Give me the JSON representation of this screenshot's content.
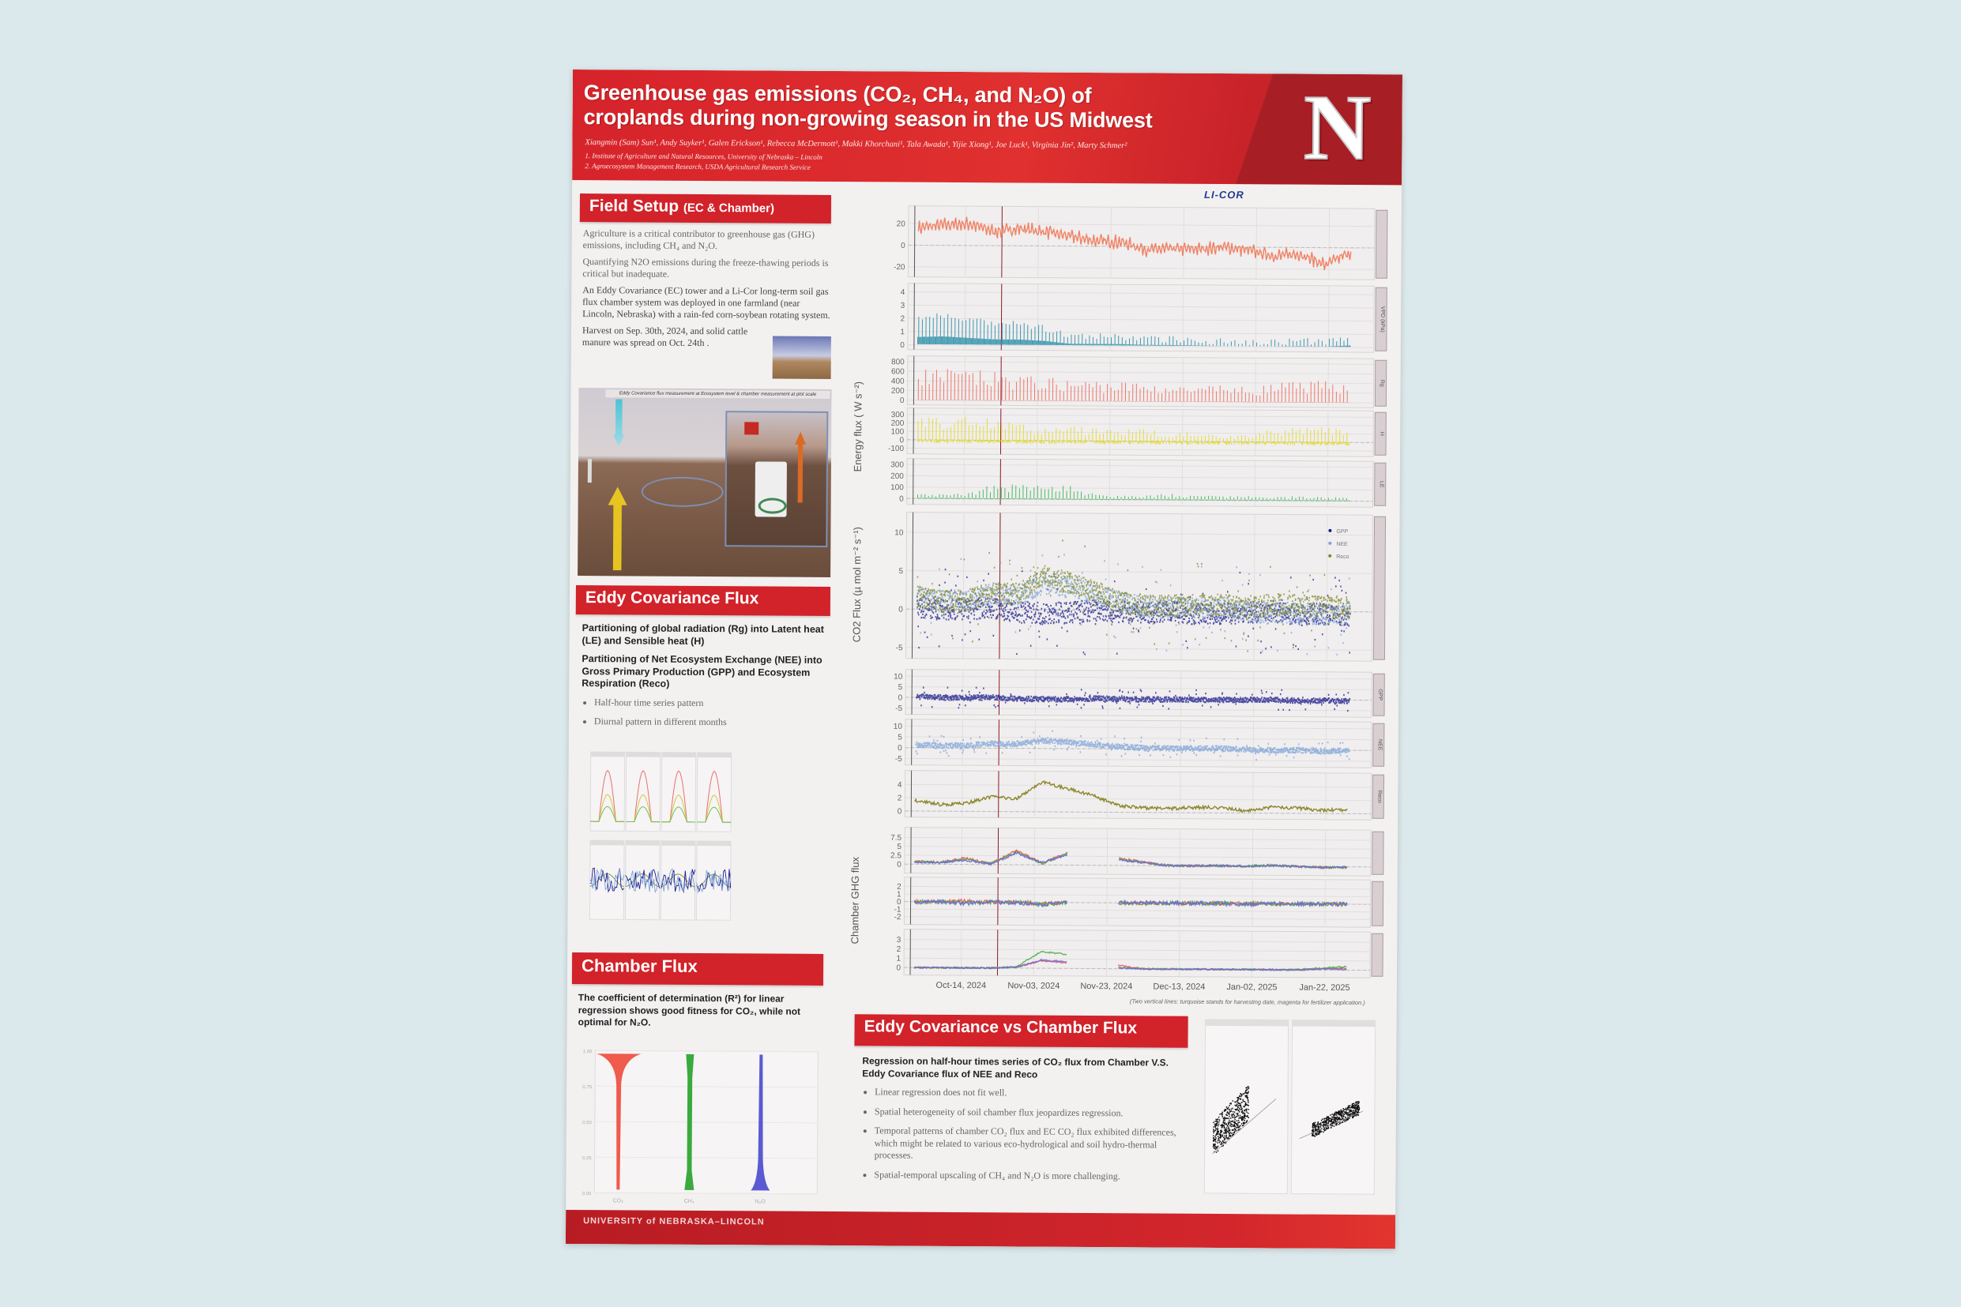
{
  "header": {
    "title_line1": "Greenhouse gas emissions (CO₂, CH₄, and N₂O) of",
    "title_line2": "croplands during non-growing season in the US Midwest",
    "authors": "Xiangmin (Sam) Sun¹, Andy Suyker¹, Galen Erickson¹, Rebecca McDermott¹, Makki Khorchani¹, Tala Awada¹, Yijie Xiong¹, Joe Luck¹, Virginia Jin², Marty Schmer²",
    "affiliation_1": "1.   Institute of Agriculture and Natural Resources, University of Nebraska – Lincoln",
    "affiliation_2": "2.   Agroecosystem Management Research, USDA Agricultural Research Service",
    "logo_letter": "N",
    "sponsor_logo": "LI-COR"
  },
  "field_setup": {
    "heading": "Field Setup",
    "heading_sub": "(EC & Chamber)",
    "paragraphs": [
      "Agriculture is a critical contributor to greenhouse gas (GHG) emissions, including CH₄ and N₂O.",
      "Quantifying N2O emissions during the freeze-thawing periods is critical but inadequate.",
      "An Eddy Covariance (EC) tower and a Li-Cor long-term soil gas flux chamber system was deployed in one farmland (near Lincoln, Nebraska) with a rain-fed corn-soybean rotating system.",
      "Harvest on Sep. 30th, 2024, and solid cattle manure was spread on Oct. 24th ."
    ],
    "photo_caption": "Eddy Covariance flux measurement at Ecosystem level & chamber measurement at plot scale"
  },
  "ec_flux": {
    "heading": "Eddy Covariance Flux",
    "point1": "Partitioning of global radiation (Rg) into Latent heat (LE) and Sensible heat (H)",
    "point2": "Partitioning of Net Ecosystem Exchange (NEE) into Gross Primary Production (GPP) and Ecosystem Respiration (Reco)",
    "bullets": [
      "Half-hour time series pattern",
      "Diurnal pattern in different months"
    ]
  },
  "chamber_flux": {
    "heading": "Chamber Flux",
    "text": "The coefficient of determination (R²) for linear regression shows good fitness for CO₂, while not optimal for N₂O."
  },
  "ec_vs_chamber": {
    "heading": "Eddy Covariance vs Chamber Flux",
    "lead": "Regression on half-hour times series of CO₂ flux from Chamber V.S. Eddy Covariance flux of NEE and Reco",
    "bullets": [
      "Linear regression does not fit well.",
      "Spatial heterogeneity of soil chamber flux jeopardizes regression.",
      "Temporal patterns of chamber CO₂ flux and EC CO₂ flux exhibited differences, which might be related to various eco-hydrological and soil hydro-thermal processes.",
      "Spatial-temporal upscaling of CH₄ and N₂O is more challenging."
    ]
  },
  "footer": {
    "university": "UNIVERSITY of NEBRASKA–LINCOLN"
  },
  "colors": {
    "brand_red": "#d2222a",
    "dark_red": "#a71f25",
    "licor_blue": "#1d3c8f"
  },
  "chart_data": [
    {
      "type": "line",
      "title": "",
      "x_axis": {
        "type": "date",
        "domain": [
          "2024-09-30",
          "2025-01-31"
        ],
        "tick_dates": [
          "2024-10-14",
          "2024-11-03",
          "2024-11-23",
          "2024-12-13",
          "2025-01-02",
          "2025-01-22"
        ],
        "tick_labels": [
          "Oct-14, 2024",
          "Nov-03, 2024",
          "Nov-23, 2024",
          "Dec-13, 2024",
          "Jan-02, 2025",
          "Jan-22, 2025"
        ]
      },
      "x": [
        "2024-10-01",
        "2024-10-08",
        "2024-10-15",
        "2024-10-22",
        "2024-10-29",
        "2024-11-05",
        "2024-11-12",
        "2024-11-19",
        "2024-11-26",
        "2024-12-03",
        "2024-12-10",
        "2024-12-17",
        "2024-12-24",
        "2024-12-31",
        "2025-01-07",
        "2025-01-14",
        "2025-01-21",
        "2025-01-28"
      ],
      "vertical_lines": [
        {
          "date": "2024-09-30",
          "color": "#555555"
        },
        {
          "date": "2024-10-24",
          "color": "#8b1a2a"
        }
      ],
      "note": "(Two vertical lines: turquoise stands for harvesting date, magenta for fertilizer application.)",
      "group_labels": {
        "energy": "Energy flux ( W s⁻²)",
        "co2": "CO2 Flux (µ mol m⁻² s⁻¹)",
        "chamber": "Chamber GHG flux"
      },
      "grid": true,
      "panels": [
        {
          "id": "ta",
          "strip": "",
          "ylim": [
            -25,
            32
          ],
          "yticks": [
            -20,
            0,
            20
          ],
          "series": [
            {
              "color": "#f07655",
              "values": [
                16,
                19,
                20,
                13,
                16,
                13,
                9,
                5,
                4,
                -3,
                -2,
                -2,
                0,
                -3,
                -8,
                -6,
                -16,
                -4
              ]
            }
          ]
        },
        {
          "id": "vpd",
          "strip": "VPD (kPa)",
          "ylim": [
            0,
            4.3
          ],
          "yticks": [
            0,
            1,
            2,
            3,
            4
          ],
          "series": [
            {
              "color": "#2b8fa8",
              "values": [
                1.2,
                1.3,
                1.1,
                0.9,
                0.9,
                0.7,
                0.3,
                0.3,
                0.3,
                0.2,
                0.2,
                0.15,
                0.1,
                0.1,
                0.1,
                0.15,
                0.1,
                0.3
              ]
            }
          ]
        },
        {
          "id": "rg",
          "strip": "Rg",
          "ylim": [
            0,
            820
          ],
          "yticks": [
            0,
            200,
            400,
            600,
            800
          ],
          "series": [
            {
              "color": "#ee6a5e",
              "values": [
                720,
                680,
                650,
                600,
                550,
                500,
                450,
                450,
                420,
                400,
                350,
                300,
                380,
                300,
                400,
                450,
                450,
                450
              ]
            }
          ]
        },
        {
          "id": "h",
          "strip": "H",
          "ylim": [
            -110,
            320
          ],
          "yticks": [
            -100,
            0,
            100,
            200,
            300
          ],
          "series": [
            {
              "color": "#e3d92a",
              "values": [
                300,
                280,
                300,
                250,
                200,
                150,
                180,
                160,
                170,
                150,
                100,
                120,
                60,
                100,
                180,
                180,
                180,
                160
              ]
            }
          ]
        },
        {
          "id": "le",
          "strip": "LE",
          "ylim": [
            -10,
            310
          ],
          "yticks": [
            0,
            100,
            200,
            300
          ],
          "series": [
            {
              "color": "#39b554",
              "values": [
                40,
                40,
                60,
                150,
                150,
                200,
                120,
                50,
                40,
                40,
                60,
                40,
                40,
                40,
                40,
                40,
                40,
                40
              ]
            }
          ]
        },
        {
          "id": "co2",
          "strip": "",
          "ylim": [
            -5.8,
            12
          ],
          "yticks": [
            -5,
            0,
            5,
            10
          ],
          "legend": "top-right",
          "series": [
            {
              "name": "GPP",
              "color": "#1a1a8c",
              "values": [
                0.3,
                0,
                0,
                0.2,
                -0.3,
                -0.5,
                -0.4,
                0,
                -0.2,
                -0.3,
                -0.2,
                -0.4,
                -0.3,
                -0.2,
                0,
                -0.5,
                -0.3,
                -0.5
              ]
            },
            {
              "name": "NEE",
              "color": "#7ea3d8",
              "values": [
                1.5,
                1.0,
                1.2,
                2,
                2,
                3.5,
                3,
                2,
                1,
                0.5,
                0.3,
                0.5,
                0.5,
                0,
                -0.3,
                0,
                -0.5,
                0
              ]
            },
            {
              "name": "Reco",
              "color": "#7f8a2a",
              "values": [
                1.6,
                1.0,
                1.2,
                2.2,
                2.0,
                4.5,
                3.5,
                2.5,
                1.0,
                0.7,
                0.6,
                0.8,
                0.8,
                0.3,
                0.9,
                0.8,
                0.5,
                0.6
              ]
            }
          ]
        },
        {
          "id": "gpp",
          "strip": "GPP",
          "ylim": [
            -5.8,
            11
          ],
          "yticks": [
            -5,
            0,
            5,
            10
          ],
          "series": [
            {
              "color": "#1a1a8c",
              "values": [
                0.3,
                0,
                0,
                0.2,
                -0.3,
                -0.5,
                -0.4,
                0,
                -0.2,
                -0.3,
                -0.2,
                -0.4,
                -0.3,
                -0.2,
                0,
                -0.5,
                -0.3,
                -0.5
              ]
            }
          ]
        },
        {
          "id": "nee",
          "strip": "NEE",
          "ylim": [
            -5.8,
            11
          ],
          "yticks": [
            -5,
            0,
            5,
            10
          ],
          "series": [
            {
              "color": "#7ea3d8",
              "values": [
                1.5,
                1.0,
                1.2,
                2,
                2,
                3.5,
                3,
                2,
                1,
                0.5,
                0.3,
                0.5,
                0.5,
                0,
                -0.3,
                0,
                -0.5,
                0
              ]
            }
          ]
        },
        {
          "id": "reco",
          "strip": "Reco",
          "ylim": [
            -0.2,
            5.4
          ],
          "yticks": [
            0,
            2,
            4
          ],
          "series": [
            {
              "color": "#7f7a16",
              "values": [
                1.6,
                1.0,
                1.2,
                2.2,
                2.0,
                4.5,
                3.5,
                2.5,
                1.0,
                0.7,
                0.6,
                0.8,
                0.8,
                0.3,
                0.9,
                0.8,
                0.5,
                0.6
              ]
            }
          ]
        },
        {
          "id": "ch_co2",
          "strip": "",
          "ylim": [
            -1.2,
            9
          ],
          "yticks": [
            0.0,
            2.5,
            5.0,
            7.5
          ],
          "series": [
            {
              "color": "#f0584a",
              "values": [
                0.8,
                0.6,
                1.8,
                0.3,
                4,
                0.5,
                3.5,
                null,
                2,
                1,
                0,
                0,
                0.1,
                0,
                0.3,
                0,
                -0.2,
                -0.2
              ]
            },
            {
              "color": "#4fae4f",
              "values": [
                0.7,
                0.5,
                1.4,
                0.3,
                3.6,
                0.4,
                3.2,
                null,
                1.8,
                0.9,
                0,
                0,
                0.1,
                0,
                0.3,
                0,
                -0.2,
                -0.2
              ]
            },
            {
              "color": "#6a6ad8",
              "values": [
                0.6,
                0.5,
                1.2,
                0.2,
                3.3,
                0.6,
                3.0,
                null,
                1.6,
                0.8,
                0,
                0,
                0.1,
                0,
                0.2,
                0,
                -0.2,
                -0.2
              ]
            }
          ]
        },
        {
          "id": "ch_ch4",
          "strip": "",
          "ylim": [
            -2.4,
            2.6
          ],
          "yticks": [
            -2,
            -1,
            0,
            1,
            2
          ],
          "series": [
            {
              "color": "#f0584a",
              "values": [
                0,
                0,
                0.1,
                0,
                0,
                -0.2,
                0,
                null,
                0,
                0,
                0,
                0,
                0,
                0,
                0,
                0,
                0,
                0
              ]
            },
            {
              "color": "#4fae4f",
              "values": [
                0,
                0,
                -0.1,
                0,
                0,
                -0.3,
                0,
                null,
                0,
                0,
                0,
                0,
                0,
                0,
                0,
                0,
                0,
                0
              ]
            },
            {
              "color": "#6a6ad8",
              "values": [
                -0.1,
                0,
                -0.2,
                0,
                -0.1,
                -0.3,
                0,
                null,
                0,
                0,
                0,
                0,
                0,
                -0.1,
                0,
                0,
                0,
                0
              ]
            }
          ]
        },
        {
          "id": "ch_n2o",
          "strip": "",
          "ylim": [
            -0.3,
            3.6
          ],
          "yticks": [
            0,
            1,
            2,
            3
          ],
          "series": [
            {
              "color": "#f0584a",
              "values": [
                0,
                0,
                0,
                0,
                0.1,
                0.8,
                0.6,
                null,
                0.4,
                0,
                0,
                0,
                0,
                0,
                0,
                0,
                0.1,
                0.2
              ]
            },
            {
              "color": "#4fae4f",
              "values": [
                0,
                0,
                0,
                0,
                0.1,
                1.8,
                1.5,
                null,
                0.1,
                0,
                0,
                0,
                0,
                0,
                0,
                0,
                0.2,
                0.4
              ]
            },
            {
              "color": "#6a6ad8",
              "values": [
                0,
                0,
                0,
                0,
                0.1,
                0.9,
                0.7,
                null,
                0.1,
                0,
                0,
                0,
                0,
                0,
                0,
                0,
                0.1,
                0.1
              ]
            }
          ]
        }
      ]
    },
    {
      "type": "violin",
      "title": "",
      "categories": [
        "CO₂",
        "CH₄",
        "N₂O"
      ],
      "colors": [
        "#ef5b4c",
        "#3aaa3f",
        "#5a5ad2"
      ],
      "median": [
        0.99,
        0.96,
        0.05
      ],
      "ylim": [
        0,
        1
      ],
      "yticks": [
        "0.00",
        "0.25",
        "0.50",
        "0.75",
        "1.00"
      ]
    }
  ]
}
